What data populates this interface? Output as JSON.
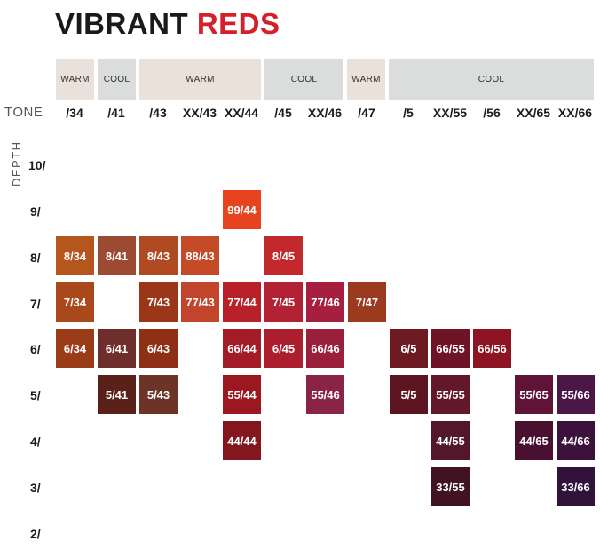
{
  "title": {
    "word1": "VIBRANT",
    "word2": "REDS"
  },
  "temperatures": [
    "WARM",
    "COOL",
    "WARM",
    "COOL",
    "WARM",
    "COOL"
  ],
  "tone_label": "TONE",
  "depth_label": "DEPTH",
  "tones": [
    "/34",
    "/41",
    "/43",
    "XX/43",
    "XX/44",
    "/45",
    "XX/46",
    "/47",
    "/5",
    "XX/55",
    "/56",
    "XX/65",
    "XX/66"
  ],
  "depths": [
    "10/",
    "9/",
    "8/",
    "7/",
    "6/",
    "5/",
    "4/",
    "3/",
    "2/"
  ],
  "swatches": [
    {
      "label": "99/44",
      "color": "#e8431f"
    },
    {
      "label": "8/34",
      "color": "#b5561e"
    },
    {
      "label": "8/41",
      "color": "#9c4a32"
    },
    {
      "label": "8/43",
      "color": "#b04a22"
    },
    {
      "label": "88/43",
      "color": "#c54a28"
    },
    {
      "label": "8/45",
      "color": "#c1292c"
    },
    {
      "label": "7/34",
      "color": "#a8481b"
    },
    {
      "label": "7/43",
      "color": "#9b3618"
    },
    {
      "label": "77/43",
      "color": "#c2452b"
    },
    {
      "label": "77/44",
      "color": "#b8202a"
    },
    {
      "label": "7/45",
      "color": "#b22234"
    },
    {
      "label": "77/46",
      "color": "#a61f3e"
    },
    {
      "label": "7/47",
      "color": "#9a3a1e"
    },
    {
      "label": "6/34",
      "color": "#9a3c17"
    },
    {
      "label": "6/41",
      "color": "#6e2e2b"
    },
    {
      "label": "6/43",
      "color": "#8e2f16"
    },
    {
      "label": "66/44",
      "color": "#a31b26"
    },
    {
      "label": "6/45",
      "color": "#ac1f2f"
    },
    {
      "label": "66/46",
      "color": "#9a1f3a"
    },
    {
      "label": "6/5",
      "color": "#6d1a22"
    },
    {
      "label": "66/55",
      "color": "#6f1427"
    },
    {
      "label": "66/56",
      "color": "#8e1423"
    },
    {
      "label": "5/41",
      "color": "#5a2118"
    },
    {
      "label": "5/43",
      "color": "#6b3426"
    },
    {
      "label": "55/44",
      "color": "#9c1821"
    },
    {
      "label": "55/46",
      "color": "#8a2447"
    },
    {
      "label": "5/5",
      "color": "#5c1520"
    },
    {
      "label": "55/55",
      "color": "#63182a"
    },
    {
      "label": "55/65",
      "color": "#5e1337"
    },
    {
      "label": "55/66",
      "color": "#4a1747"
    },
    {
      "label": "44/44",
      "color": "#84161d"
    },
    {
      "label": "44/55",
      "color": "#52172a"
    },
    {
      "label": "44/65",
      "color": "#4a1030"
    },
    {
      "label": "44/66",
      "color": "#3c123d"
    },
    {
      "label": "33/55",
      "color": "#3f1224"
    },
    {
      "label": "33/66",
      "color": "#30123a"
    }
  ]
}
